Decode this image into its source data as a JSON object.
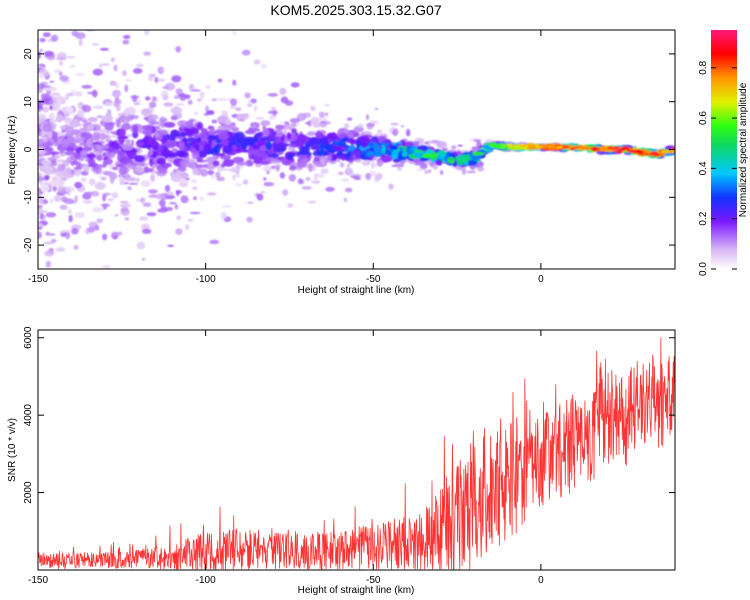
{
  "title": "KOM5.2025.303.15.32.G07",
  "chart_data": [
    {
      "type": "heatmap",
      "xlabel": "Height of straight line (km)",
      "ylabel": "Frequency (Hz)",
      "xlim": [
        -150,
        40
      ],
      "ylim": [
        -25,
        25
      ],
      "xticks": [
        -150,
        -100,
        -50,
        0
      ],
      "yticks": [
        -20,
        -10,
        0,
        10,
        20
      ],
      "colorbar": {
        "label": "Normalized spectral amplitude",
        "range": [
          0,
          0.95
        ],
        "ticks": [
          "0.0",
          "0.2",
          "0.4",
          "0.6",
          "0.8"
        ],
        "colormap": "white-purple-blue-cyan-green-yellow-orange-red-pink"
      },
      "ridge": {
        "x": [
          -150,
          -130,
          -110,
          -100,
          -90,
          -75,
          -60,
          -50,
          -40,
          -30,
          -25,
          -20,
          -15,
          -10,
          0,
          10,
          20,
          25,
          30,
          35,
          40
        ],
        "center_hz": [
          1,
          0,
          1,
          1,
          1,
          0.5,
          0.5,
          0,
          -0.5,
          -1.5,
          -2,
          -2,
          1,
          0.5,
          0.5,
          0.5,
          0,
          0,
          -0.5,
          -1,
          0
        ],
        "spread_hz": [
          14,
          13,
          12,
          10,
          9,
          8,
          6,
          5,
          3,
          2,
          2,
          2,
          1,
          1,
          0.8,
          0.8,
          1,
          1,
          1,
          1,
          1
        ],
        "amplitude": [
          0.12,
          0.18,
          0.22,
          0.25,
          0.25,
          0.26,
          0.3,
          0.34,
          0.5,
          0.55,
          0.55,
          0.5,
          0.6,
          0.65,
          0.8,
          0.85,
          0.85,
          0.9,
          0.88,
          0.85,
          0.8
        ]
      },
      "grid": false
    },
    {
      "type": "line",
      "xlabel": "Height of straight line (km)",
      "ylabel": "SNR (10 * v/v)",
      "xlim": [
        -150,
        40
      ],
      "ylim": [
        0,
        6200
      ],
      "xticks": [
        -150,
        -100,
        -50,
        0
      ],
      "yticks": [
        2000,
        4000,
        6000
      ],
      "series": [
        {
          "color": "#ff3333",
          "x": [
            -150,
            -140,
            -130,
            -120,
            -110,
            -100,
            -90,
            -80,
            -70,
            -60,
            -50,
            -40,
            -35,
            -30,
            -25,
            -20,
            -15,
            -10,
            -5,
            0,
            5,
            10,
            15,
            20,
            25,
            30,
            35,
            40
          ],
          "center": [
            250,
            250,
            250,
            280,
            350,
            450,
            500,
            500,
            480,
            500,
            550,
            650,
            750,
            950,
            1300,
            1800,
            2100,
            2300,
            2600,
            2900,
            3100,
            3200,
            3500,
            3900,
            4000,
            4200,
            4300,
            4300
          ],
          "noise": [
            300,
            300,
            300,
            350,
            500,
            800,
            800,
            700,
            700,
            750,
            900,
            1100,
            1300,
            1800,
            2200,
            2600,
            2600,
            2400,
            2000,
            1800,
            1800,
            1800,
            1800,
            1900,
            1900,
            1900,
            1900,
            1800
          ]
        }
      ],
      "grid": false
    }
  ]
}
